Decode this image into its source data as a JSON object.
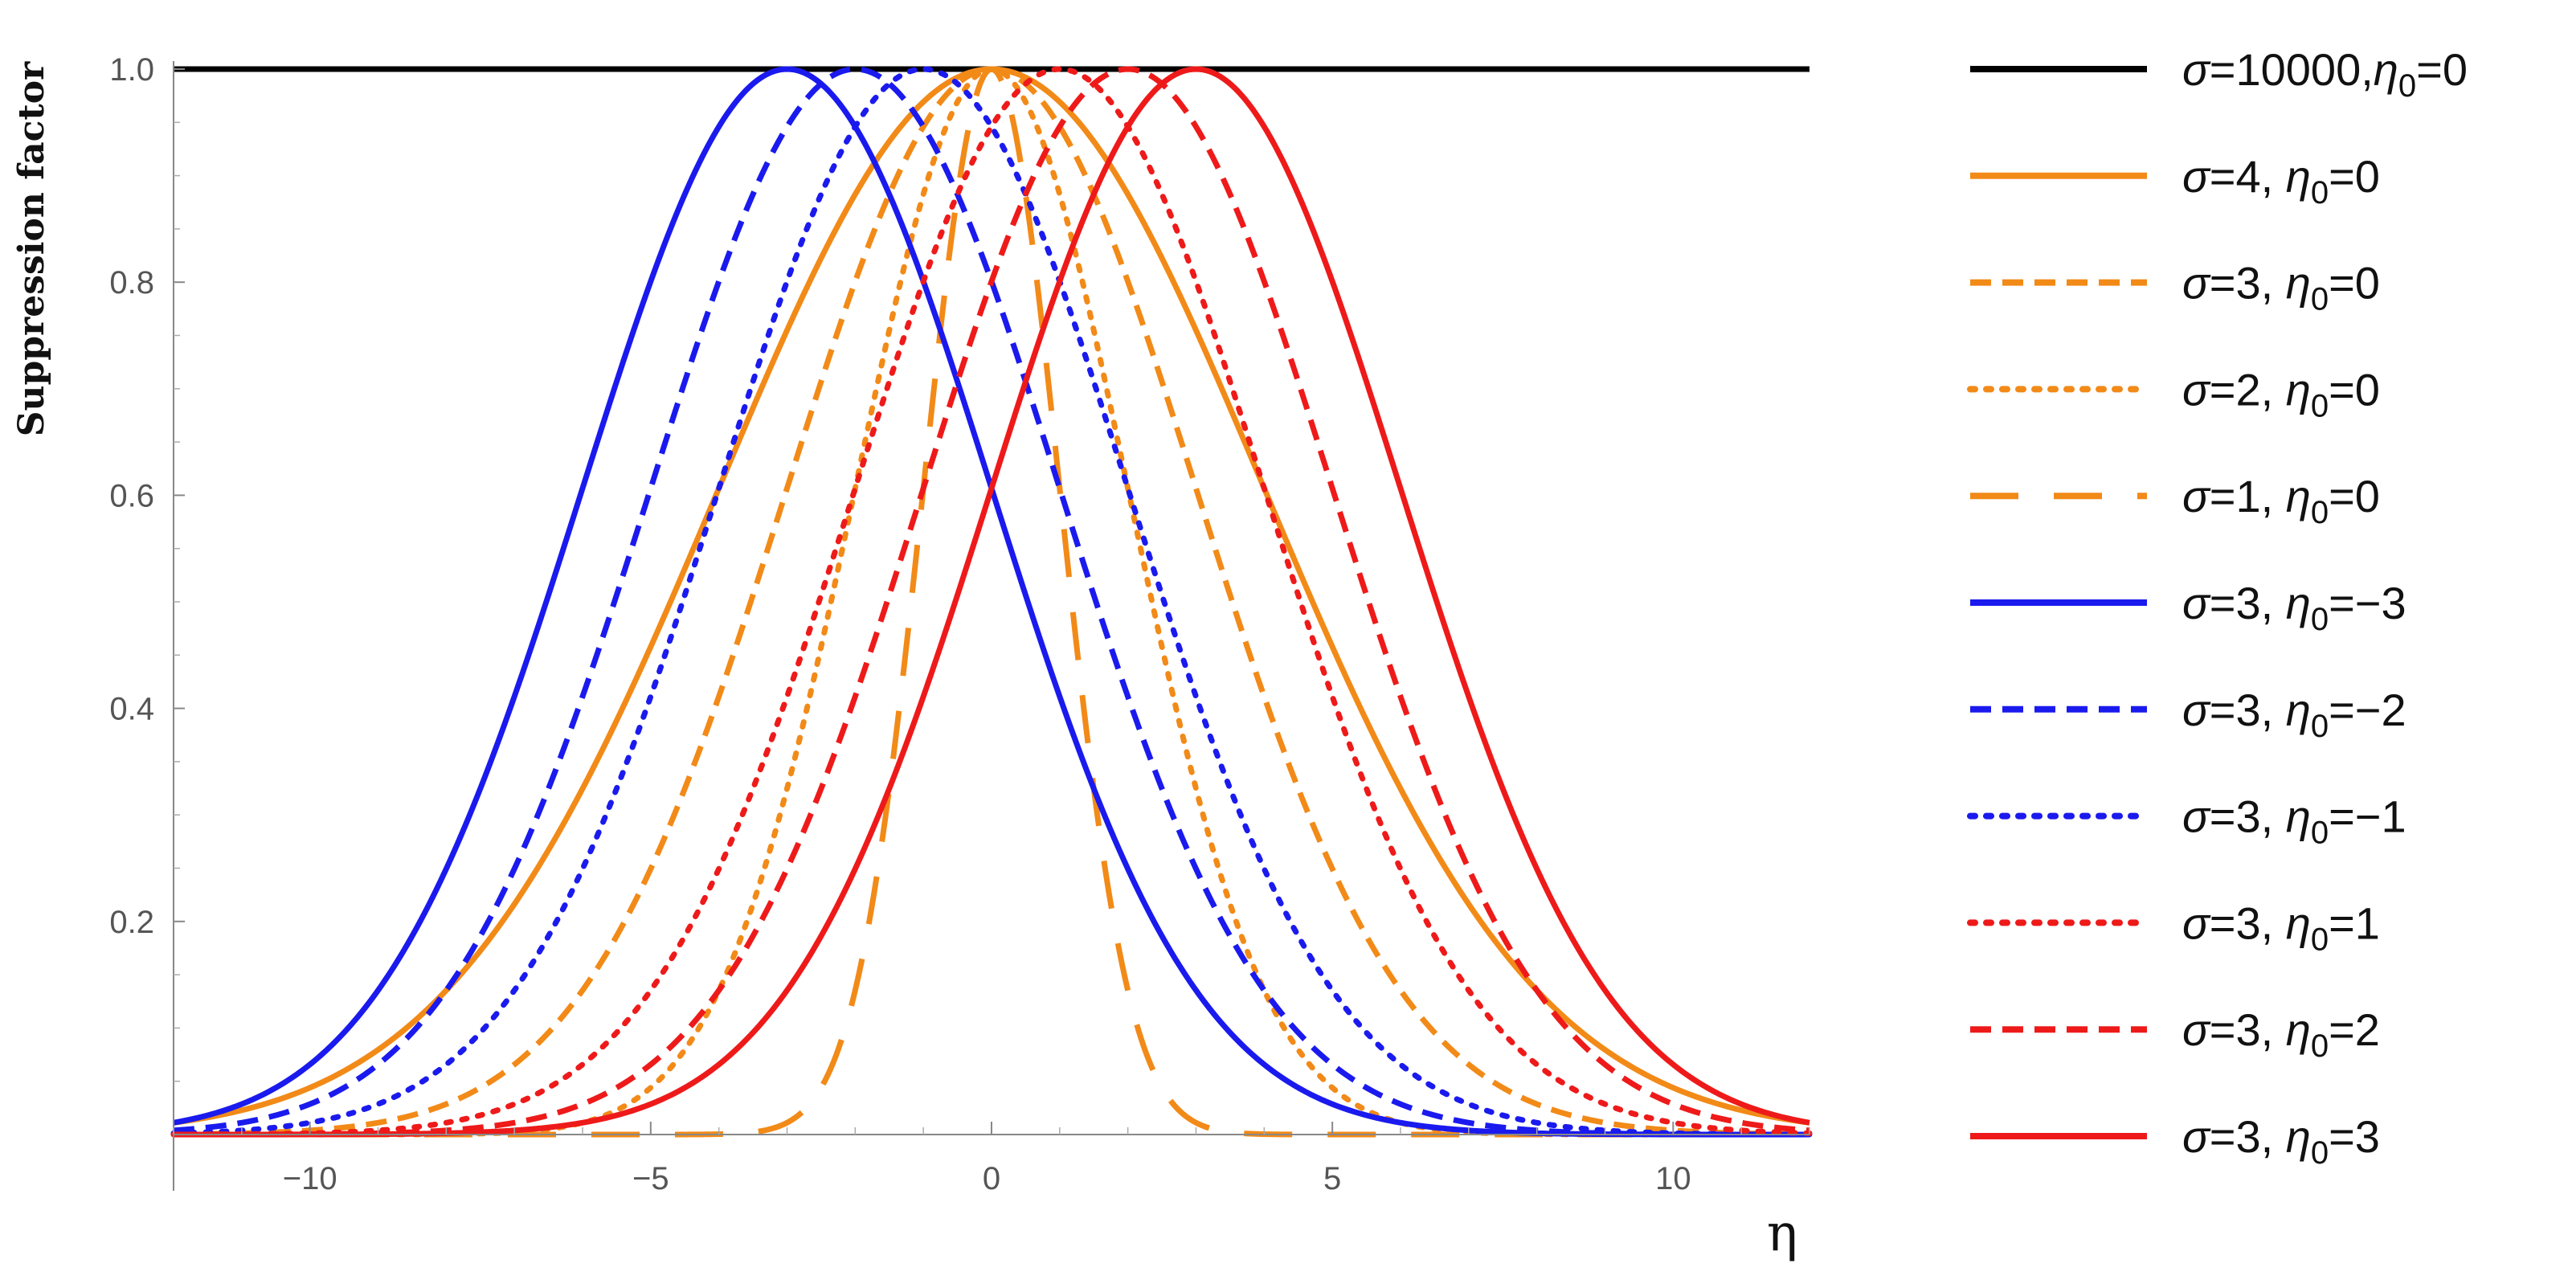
{
  "chart_data": {
    "type": "line",
    "title": "",
    "xlabel": "η",
    "ylabel": "Suppression factor",
    "xlim": [
      -12,
      12
    ],
    "ylim": [
      0,
      1.0
    ],
    "xticks": [
      -10,
      -5,
      0,
      5,
      10
    ],
    "xtick_labels": [
      "−10",
      "−5",
      "0",
      "5",
      "10"
    ],
    "yticks": [
      0.2,
      0.4,
      0.6,
      0.8,
      1.0
    ],
    "ytick_labels": [
      "0.2",
      "0.4",
      "0.6",
      "0.8",
      "1.0"
    ],
    "grid": false,
    "legend_position": "right",
    "function": "exp(-(η-η0)^2/(2σ^2))",
    "series": [
      {
        "name": "σ=10000,η0=0",
        "sigma": 10000,
        "eta0": 0,
        "color": "#000000",
        "dash": "solid"
      },
      {
        "name": "σ=4, η0=0",
        "sigma": 4,
        "eta0": 0,
        "color": "#F28A18",
        "dash": "solid"
      },
      {
        "name": "σ=3, η0=0",
        "sigma": 3,
        "eta0": 0,
        "color": "#F28A18",
        "dash": "dashed"
      },
      {
        "name": "σ=2, η0=0",
        "sigma": 2,
        "eta0": 0,
        "color": "#F28A18",
        "dash": "dotted"
      },
      {
        "name": "σ=1, η0=0",
        "sigma": 1,
        "eta0": 0,
        "color": "#F28A18",
        "dash": "longdash"
      },
      {
        "name": "σ=3, η0=−3",
        "sigma": 3,
        "eta0": -3,
        "color": "#1A1AEE",
        "dash": "solid"
      },
      {
        "name": "σ=3, η0=−2",
        "sigma": 3,
        "eta0": -2,
        "color": "#1A1AEE",
        "dash": "dashed"
      },
      {
        "name": "σ=3, η0=−1",
        "sigma": 3,
        "eta0": -1,
        "color": "#1A1AEE",
        "dash": "dotted"
      },
      {
        "name": "σ=3, η0=1",
        "sigma": 3,
        "eta0": 1,
        "color": "#EE1A1A",
        "dash": "dotted"
      },
      {
        "name": "σ=3, η0=2",
        "sigma": 3,
        "eta0": 2,
        "color": "#EE1A1A",
        "dash": "dashed"
      },
      {
        "name": "σ=3, η0=3",
        "sigma": 3,
        "eta0": 3,
        "color": "#EE1A1A",
        "dash": "solid"
      }
    ],
    "legend": [
      {
        "sigma_text": "σ=10000,",
        "eta_sub": "0",
        "eta_val": "=0"
      },
      {
        "sigma_text": "σ=4, ",
        "eta_sub": "0",
        "eta_val": "=0"
      },
      {
        "sigma_text": "σ=3, ",
        "eta_sub": "0",
        "eta_val": "=0"
      },
      {
        "sigma_text": "σ=2, ",
        "eta_sub": "0",
        "eta_val": "=0"
      },
      {
        "sigma_text": "σ=1, ",
        "eta_sub": "0",
        "eta_val": "=0"
      },
      {
        "sigma_text": "σ=3, ",
        "eta_sub": "0",
        "eta_val": "=−3"
      },
      {
        "sigma_text": "σ=3, ",
        "eta_sub": "0",
        "eta_val": "=−2"
      },
      {
        "sigma_text": "σ=3, ",
        "eta_sub": "0",
        "eta_val": "=−1"
      },
      {
        "sigma_text": "σ=3, ",
        "eta_sub": "0",
        "eta_val": "=1"
      },
      {
        "sigma_text": "σ=3, ",
        "eta_sub": "0",
        "eta_val": "=2"
      },
      {
        "sigma_text": "σ=3, ",
        "eta_sub": "0",
        "eta_val": "=3"
      }
    ]
  }
}
